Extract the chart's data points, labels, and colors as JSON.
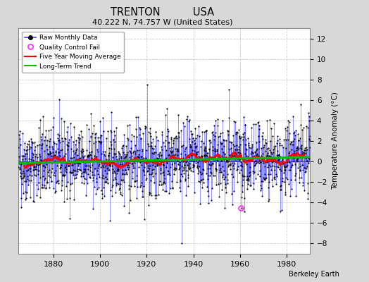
{
  "title_line1": "TRENTON          USA",
  "title_line2": "40.222 N, 74.757 W (United States)",
  "ylabel": "Temperature Anomaly (°C)",
  "xlabel_note": "Berkeley Earth",
  "year_start": 1865,
  "year_end": 1990,
  "ylim": [
    -9,
    13
  ],
  "yticks": [
    -8,
    -6,
    -4,
    -2,
    0,
    2,
    4,
    6,
    8,
    10,
    12
  ],
  "xticks": [
    1880,
    1900,
    1920,
    1940,
    1960,
    1980
  ],
  "line_color": "#4444ff",
  "dot_color": "#000000",
  "moving_avg_color": "#ff0000",
  "trend_color": "#00bb00",
  "qc_fail_color": "#ff44ff",
  "figure_bg": "#d8d8d8",
  "plot_bg": "#ffffff",
  "grid_color": "#cccccc",
  "seed": 42,
  "qc_fail_year": 1960,
  "qc_fail_month": 6,
  "qc_fail_value": -4.5
}
